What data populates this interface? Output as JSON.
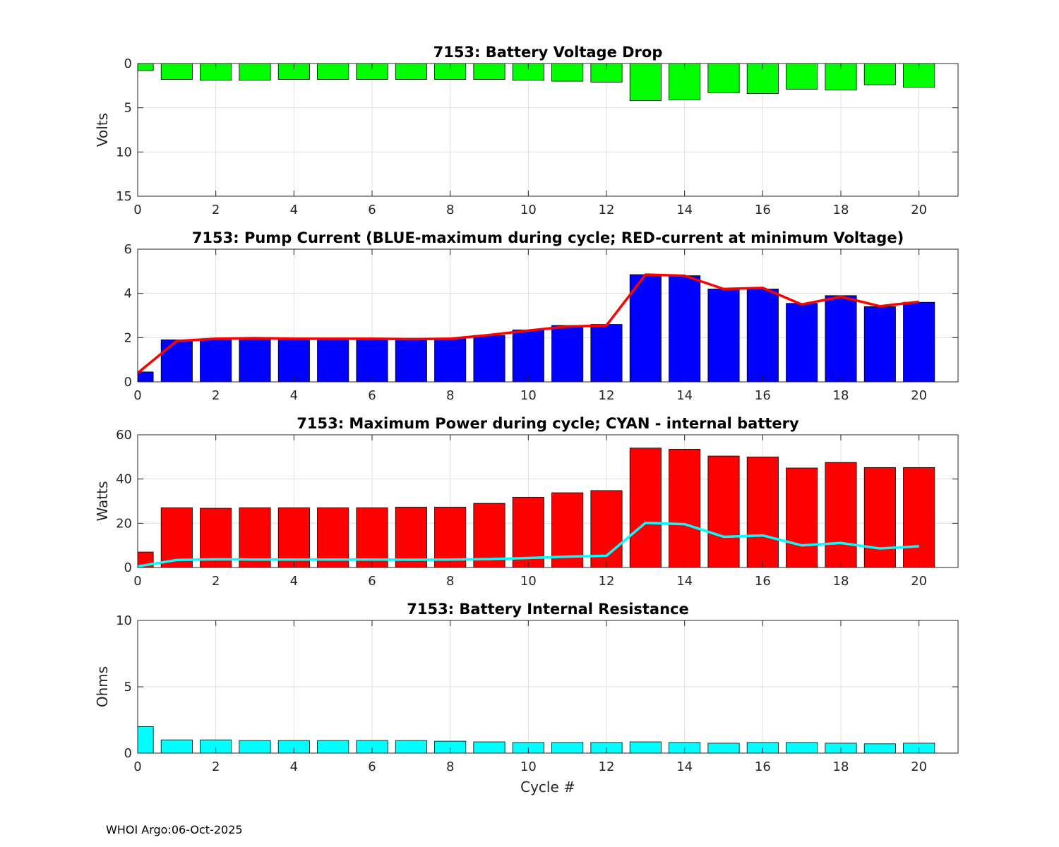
{
  "chart_data": [
    {
      "type": "bar",
      "title": "7153: Battery Voltage Drop",
      "xlabel": "",
      "ylabel": "Volts",
      "x": [
        0,
        1,
        2,
        3,
        4,
        5,
        6,
        7,
        8,
        9,
        10,
        11,
        12,
        13,
        14,
        15,
        16,
        17,
        18,
        19,
        20
      ],
      "values": [
        0.8,
        1.8,
        1.9,
        1.9,
        1.8,
        1.8,
        1.8,
        1.8,
        1.8,
        1.8,
        1.9,
        2.0,
        2.1,
        4.2,
        4.1,
        3.3,
        3.4,
        2.9,
        3.0,
        2.4,
        2.7
      ],
      "bar_color": "#00ff00",
      "xlim": [
        0,
        21
      ],
      "ylim": [
        0,
        15
      ],
      "y_reversed": true,
      "xticks": [
        0,
        2,
        4,
        6,
        8,
        10,
        12,
        14,
        16,
        18,
        20
      ],
      "yticks": [
        0,
        5,
        10,
        15
      ],
      "grid": true
    },
    {
      "type": "bar",
      "title": "7153: Pump Current (BLUE-maximum during cycle; RED-current at minimum Voltage)",
      "xlabel": "",
      "ylabel": "",
      "x": [
        0,
        1,
        2,
        3,
        4,
        5,
        6,
        7,
        8,
        9,
        10,
        11,
        12,
        13,
        14,
        15,
        16,
        17,
        18,
        19,
        20
      ],
      "values": [
        0.45,
        1.9,
        1.95,
        1.95,
        1.95,
        1.95,
        1.95,
        1.95,
        1.95,
        2.1,
        2.35,
        2.55,
        2.6,
        4.85,
        4.8,
        4.2,
        4.2,
        3.55,
        3.9,
        3.4,
        3.6
      ],
      "bar_color": "#0000ff",
      "line": {
        "color": "#ff0000",
        "values": [
          0.4,
          1.85,
          1.95,
          1.98,
          1.95,
          1.95,
          1.95,
          1.93,
          1.95,
          2.12,
          2.32,
          2.5,
          2.55,
          4.85,
          4.8,
          4.2,
          4.25,
          3.5,
          3.85,
          3.42,
          3.62
        ]
      },
      "xlim": [
        0,
        21
      ],
      "ylim": [
        0,
        6
      ],
      "xticks": [
        0,
        2,
        4,
        6,
        8,
        10,
        12,
        14,
        16,
        18,
        20
      ],
      "yticks": [
        0,
        2,
        4,
        6
      ],
      "grid": true
    },
    {
      "type": "bar",
      "title": "7153: Maximum Power during cycle; CYAN - internal battery",
      "xlabel": "",
      "ylabel": "Watts",
      "x": [
        0,
        1,
        2,
        3,
        4,
        5,
        6,
        7,
        8,
        9,
        10,
        11,
        12,
        13,
        14,
        15,
        16,
        17,
        18,
        19,
        20
      ],
      "values": [
        7,
        27,
        26.8,
        27,
        27,
        27,
        27,
        27.3,
        27.3,
        29,
        31.8,
        33.8,
        34.8,
        54,
        53.5,
        50.4,
        50,
        45,
        47.5,
        45.2,
        45.2
      ],
      "bar_color": "#ff0000",
      "line": {
        "color": "#00ffff",
        "values": [
          0.5,
          3.4,
          3.7,
          3.6,
          3.6,
          3.6,
          3.6,
          3.5,
          3.6,
          3.8,
          4.3,
          4.9,
          5.3,
          20.2,
          19.6,
          13.9,
          14.5,
          10,
          11.1,
          8.6,
          9.6
        ]
      },
      "xlim": [
        0,
        21
      ],
      "ylim": [
        0,
        60
      ],
      "xticks": [
        0,
        2,
        4,
        6,
        8,
        10,
        12,
        14,
        16,
        18,
        20
      ],
      "yticks": [
        0,
        20,
        40,
        60
      ],
      "grid": true
    },
    {
      "type": "bar",
      "title": "7153: Battery Internal Resistance",
      "xlabel": "Cycle #",
      "ylabel": "Ohms",
      "x": [
        0,
        1,
        2,
        3,
        4,
        5,
        6,
        7,
        8,
        9,
        10,
        11,
        12,
        13,
        14,
        15,
        16,
        17,
        18,
        19,
        20
      ],
      "values": [
        2.0,
        1.0,
        1.0,
        0.95,
        0.95,
        0.95,
        0.95,
        0.95,
        0.9,
        0.85,
        0.8,
        0.8,
        0.8,
        0.85,
        0.8,
        0.75,
        0.8,
        0.8,
        0.75,
        0.7,
        0.75
      ],
      "bar_color": "#00ffff",
      "xlim": [
        0,
        21
      ],
      "ylim": [
        0,
        10
      ],
      "xticks": [
        0,
        2,
        4,
        6,
        8,
        10,
        12,
        14,
        16,
        18,
        20
      ],
      "yticks": [
        0,
        5,
        10
      ],
      "grid": true
    }
  ],
  "footer": "WHOI Argo:06-Oct-2025"
}
